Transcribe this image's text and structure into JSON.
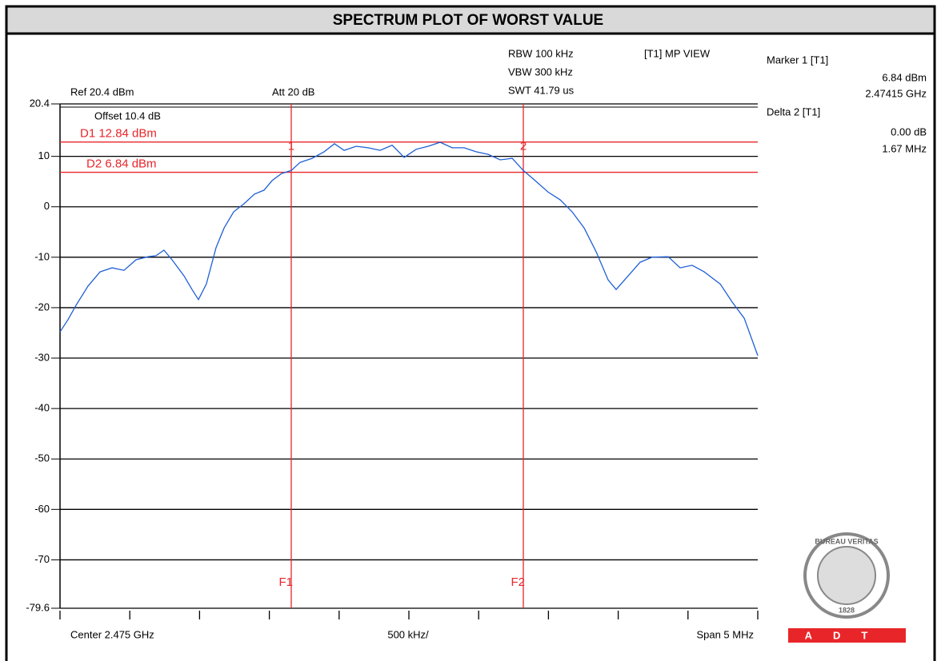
{
  "chart_data": {
    "type": "line",
    "title": "SPECTRUM PLOT OF WORST VALUE",
    "ref_level": "Ref 20.4 dBm",
    "attenuation": "Att  20 dB",
    "offset": "Offset 10.4 dB",
    "settings": [
      "RBW 100 kHz",
      "VBW 300 kHz",
      "SWT 41.79 us"
    ],
    "view": "[T1] MP VIEW",
    "readout": [
      "Marker 1 [T1]",
      "6.84 dBm",
      "2.47415 GHz",
      "Delta 2 [T1]",
      "0.00 dB",
      "1.67 MHz"
    ],
    "x_labels": [
      "Center 2.475 GHz",
      "500 kHz/",
      "Span 5 MHz"
    ],
    "color": "#1f5fd6",
    "x": [
      2472.5,
      2472.557,
      2472.615,
      2472.701,
      2472.787,
      2472.873,
      2472.959,
      2473.045,
      2473.131,
      2473.188,
      2473.245,
      2473.303,
      2473.389,
      2473.446,
      2473.492,
      2473.549,
      2473.618,
      2473.676,
      2473.744,
      2473.819,
      2473.893,
      2473.962,
      2474.02,
      2474.088,
      2474.157,
      2474.22,
      2474.306,
      2474.392,
      2474.467,
      2474.536,
      2474.622,
      2474.708,
      2474.794,
      2474.88,
      2474.966,
      2475.052,
      2475.138,
      2475.224,
      2475.31,
      2475.396,
      2475.482,
      2475.568,
      2475.654,
      2475.74,
      2475.82,
      2475.9,
      2475.998,
      2476.084,
      2476.17,
      2476.256,
      2476.342,
      2476.428,
      2476.485,
      2476.571,
      2476.657,
      2476.743,
      2476.858,
      2476.944,
      2477.03,
      2477.116,
      2477.231,
      2477.317,
      2477.403,
      2477.5
    ],
    "values": [
      -24.8,
      -22.4,
      -19.5,
      -15.7,
      -12.9,
      -12.1,
      -12.6,
      -10.5,
      -9.9,
      -9.7,
      -8.6,
      -10.5,
      -13.7,
      -16.4,
      -18.4,
      -15.3,
      -8.1,
      -4.2,
      -1.0,
      0.6,
      2.5,
      3.3,
      5.2,
      6.6,
      7.2,
      8.8,
      9.6,
      10.9,
      12.5,
      11.2,
      12.0,
      11.7,
      11.2,
      12.2,
      9.8,
      11.4,
      12.0,
      12.8,
      11.7,
      11.7,
      10.9,
      10.4,
      9.3,
      9.6,
      7.2,
      5.3,
      2.9,
      1.4,
      -1.0,
      -4.2,
      -8.9,
      -14.5,
      -16.4,
      -13.7,
      -11.0,
      -10.0,
      -9.9,
      -12.1,
      -11.6,
      -12.9,
      -15.3,
      -18.9,
      -22.1,
      -29.5
    ],
    "xlim": [
      2472.5,
      2477.5
    ],
    "xticks": [
      2472.5,
      2473,
      2473.5,
      2474,
      2474.5,
      2475,
      2475.5,
      2476,
      2476.5,
      2477,
      2477.5
    ],
    "ylim": [
      -79.6,
      20.4
    ],
    "yticks": [
      20.4,
      10,
      0,
      -10,
      -20,
      -30,
      -40,
      -50,
      -60,
      -70,
      -79.6
    ],
    "grid": true,
    "hlines": [
      {
        "label": "D1 12.84 dBm",
        "value": 12.84
      },
      {
        "label": "D2 6.84 dBm",
        "value": 6.84
      }
    ],
    "vlines": [
      {
        "label": "F1",
        "value": 2474.157
      },
      {
        "label": "F2",
        "value": 2475.82
      }
    ],
    "markers": [
      {
        "label": "1",
        "x": 2474.157,
        "y": 6.84
      },
      {
        "label": "2",
        "x": 2475.82,
        "y": 6.84
      }
    ],
    "marker_color": "#e8262a",
    "logo": {
      "name": "BUREAU VERITAS",
      "year": "1828",
      "company": "ADT"
    }
  }
}
